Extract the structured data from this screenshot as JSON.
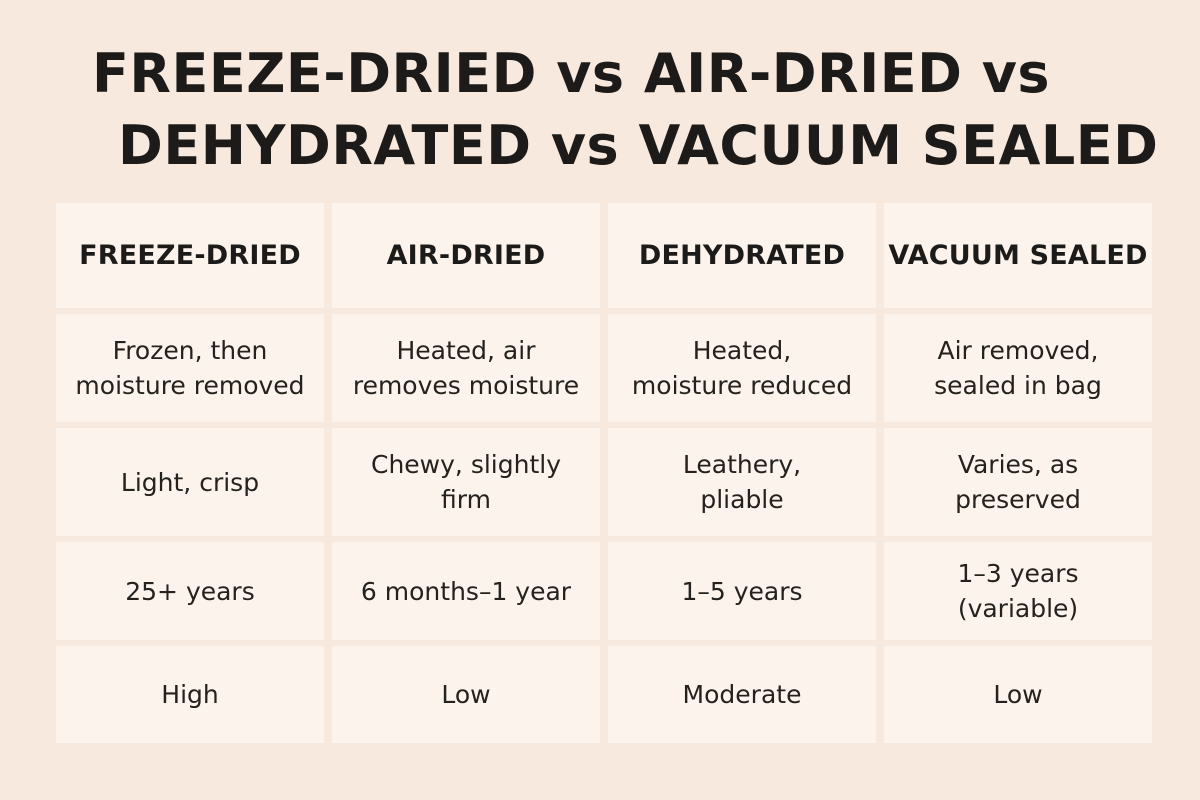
{
  "title": {
    "line1": "FREEZE-DRIED vs AIR-DRIED vs",
    "line2": "DEHYDRATED vs VACUUM SEALED"
  },
  "table": {
    "headers": [
      "FREEZE-DRIED",
      "AIR-DRIED",
      "DEHYDRATED",
      "VACUUM SEALED"
    ],
    "rows": [
      [
        "Frozen, then\nmoisture removed",
        "Heated, air\nremoves moisture",
        "Heated,\nmoisture reduced",
        "Air removed,\nsealed in bag"
      ],
      [
        "Light, crisp",
        "Chewy, slightly\nfirm",
        "Leathery,\npliable",
        "Varies, as\npreserved"
      ],
      [
        "25+ years",
        "6 months–1 year",
        "1–5 years",
        "1–3 years\n(variable)"
      ],
      [
        "High",
        "Low",
        "Moderate",
        "Low"
      ]
    ]
  },
  "colors": {
    "background": "#f7e9dd",
    "cell": "#fcf4ec",
    "text": "#1d1b19"
  }
}
